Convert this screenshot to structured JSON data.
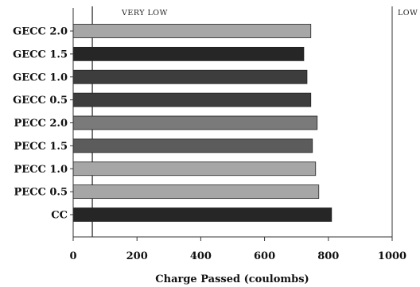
{
  "chart_data": {
    "type": "bar",
    "orientation": "horizontal",
    "categories": [
      "GECC 2.0",
      "GECC 1.5",
      "GECC 1.0",
      "GECC 0.5",
      "PECC 2.0",
      "PECC 1.5",
      "PECC 1.0",
      "PECC 0.5",
      "CC"
    ],
    "values": [
      745,
      723,
      733,
      745,
      765,
      750,
      760,
      770,
      810
    ],
    "bar_colors": [
      "#a6a6a6",
      "#262626",
      "#3d3d3d",
      "#3d3d3d",
      "#7a7a7a",
      "#5c5c5c",
      "#a6a6a6",
      "#a6a6a6",
      "#262626"
    ],
    "xlabel": "Charge Passed (coulombs)",
    "ylabel": "",
    "xlim": [
      0,
      1000
    ],
    "xticks": [
      0,
      200,
      400,
      600,
      800,
      1000
    ],
    "grid": false,
    "reference_lines": [
      {
        "x": 60,
        "label": "VERY LOW"
      },
      {
        "x": 1000,
        "label": "LOW"
      }
    ]
  }
}
